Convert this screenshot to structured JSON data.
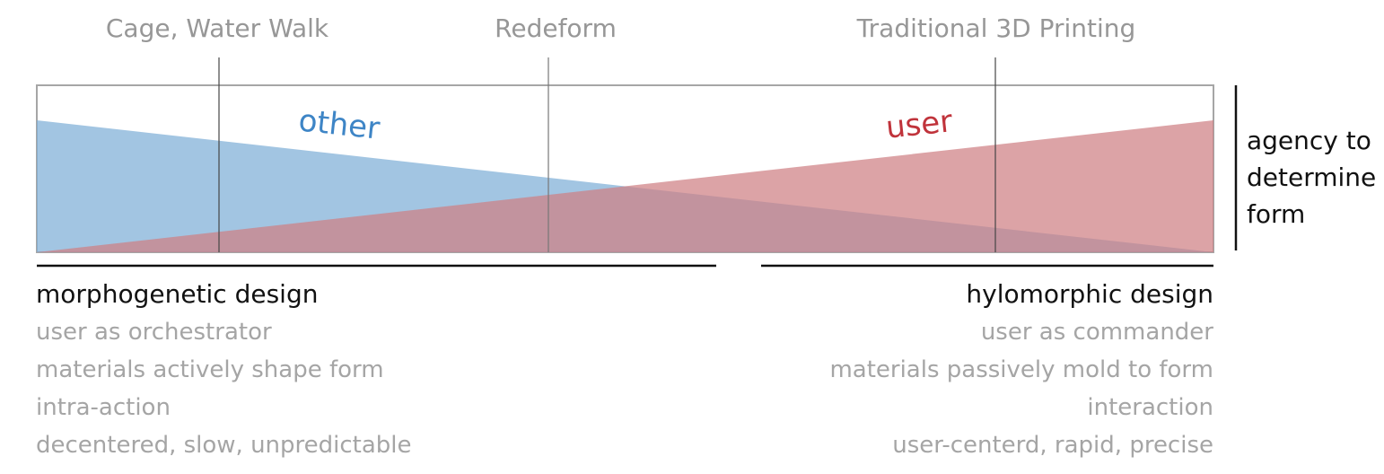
{
  "categories": [
    {
      "id": "cage",
      "label": "Cage, Water Walk"
    },
    {
      "id": "redeform",
      "label": "Redeform"
    },
    {
      "id": "traditional",
      "label": "Traditional 3D Printing"
    }
  ],
  "series": {
    "other": {
      "label": "other",
      "color": "#7eaed7",
      "text_color": "#3e85c6"
    },
    "user": {
      "label": "user",
      "color": "#cf7f84",
      "text_color": "#c0333b"
    }
  },
  "overlap_color": "#ac8092",
  "axis_label": "agency to determine form",
  "left": {
    "heading": "morphogenetic design",
    "items": [
      "user as orchestrator",
      "materials actively shape form",
      "intra-action",
      "decentered, slow, unpredictable"
    ]
  },
  "right": {
    "heading": "hylomorphic design",
    "items": [
      "user as commander",
      "materials passively mold to form",
      "interaction",
      "user-centerd, rapid, precise"
    ]
  }
}
